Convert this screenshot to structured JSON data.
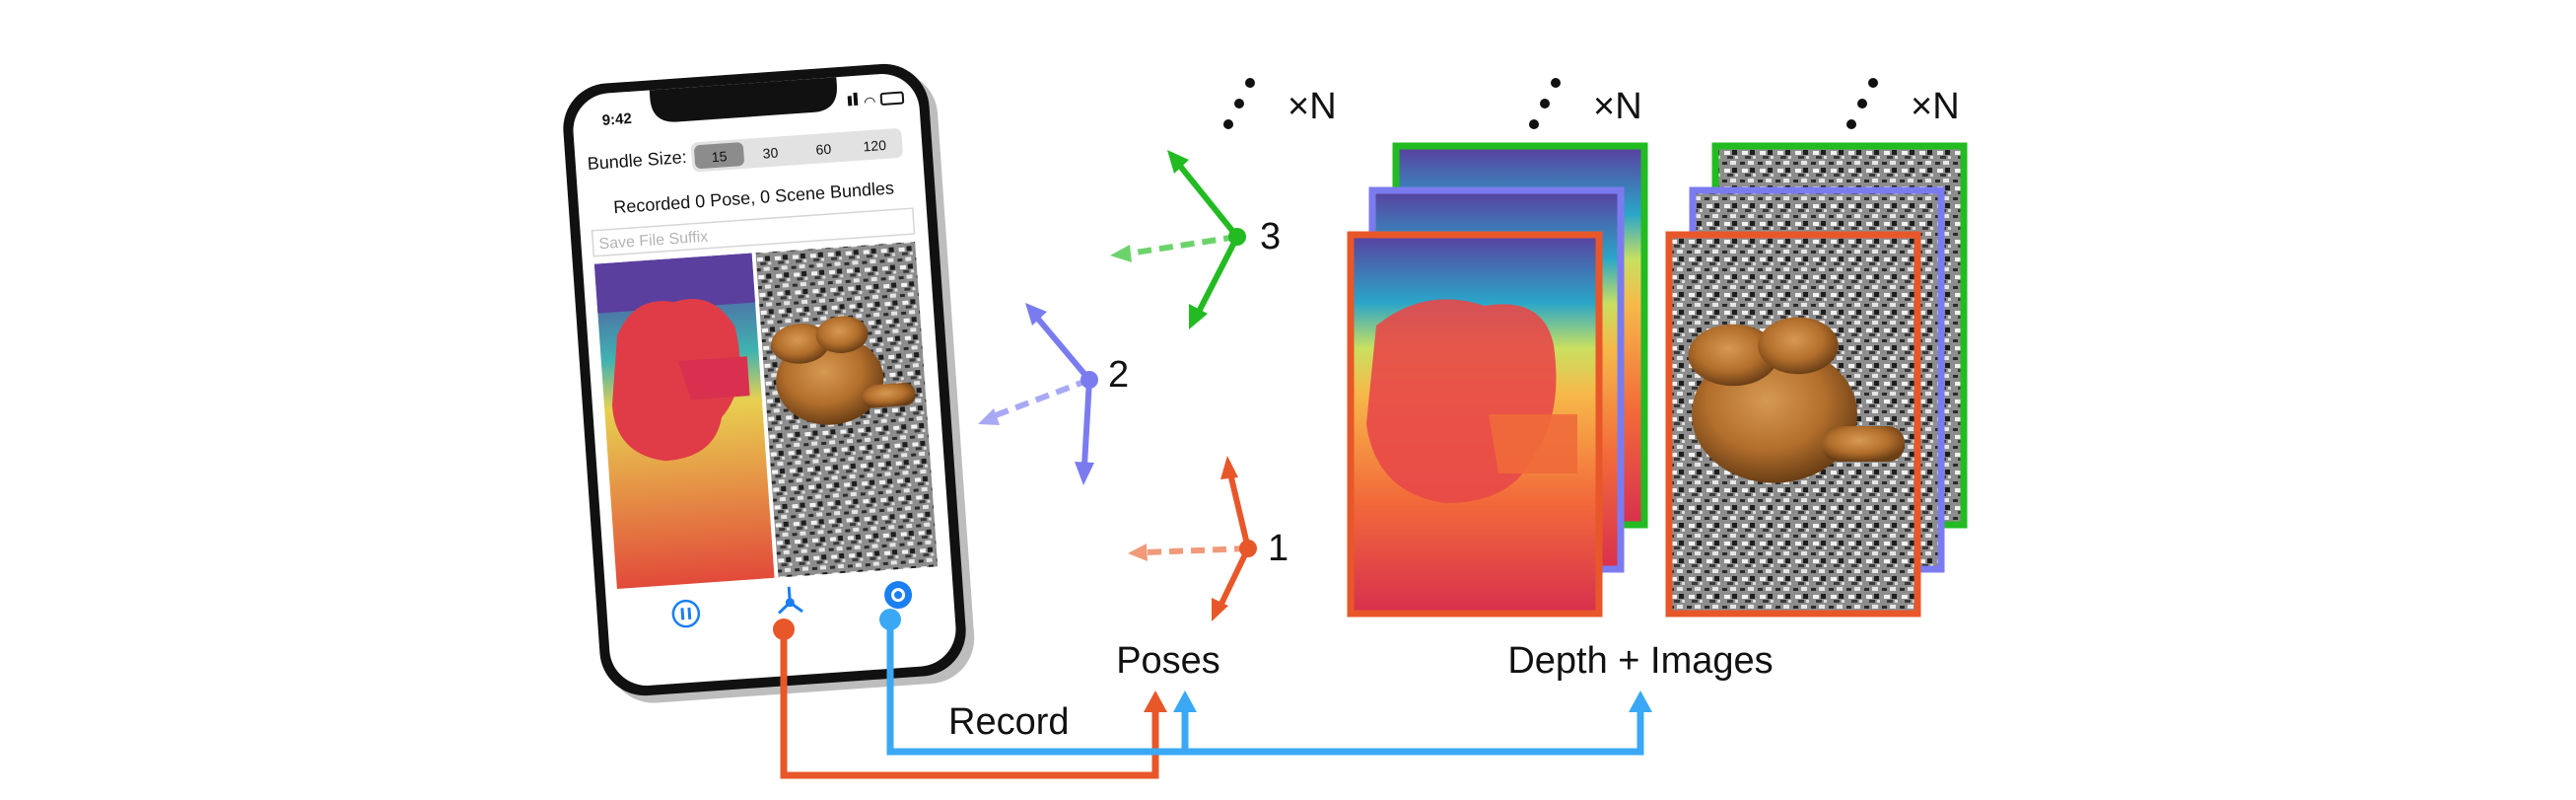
{
  "phone": {
    "time": "9:42",
    "bundle_label": "Bundle Size:",
    "bundle_options": [
      "15",
      "30",
      "60",
      "120"
    ],
    "bundle_selected": "15",
    "status": "Recorded 0 Pose, 0 Scene Bundles",
    "suffix_placeholder": "Save File Suffix",
    "buttons": [
      "pause-icon",
      "axes-icon",
      "record-icon"
    ]
  },
  "poses": {
    "labels": [
      "1",
      "2",
      "3"
    ],
    "caption": "Poses",
    "stack_marker": "×N"
  },
  "frames": {
    "caption": "Depth + Images",
    "stack_marker": "×N"
  },
  "record_label": "Record",
  "colors": {
    "pose1": "#e8572a",
    "pose2": "#7b7bf0",
    "pose3": "#22bb22",
    "wire_orange": "#e8572a",
    "wire_blue": "#3aa8f5",
    "ios_blue": "#1a7ff0"
  }
}
